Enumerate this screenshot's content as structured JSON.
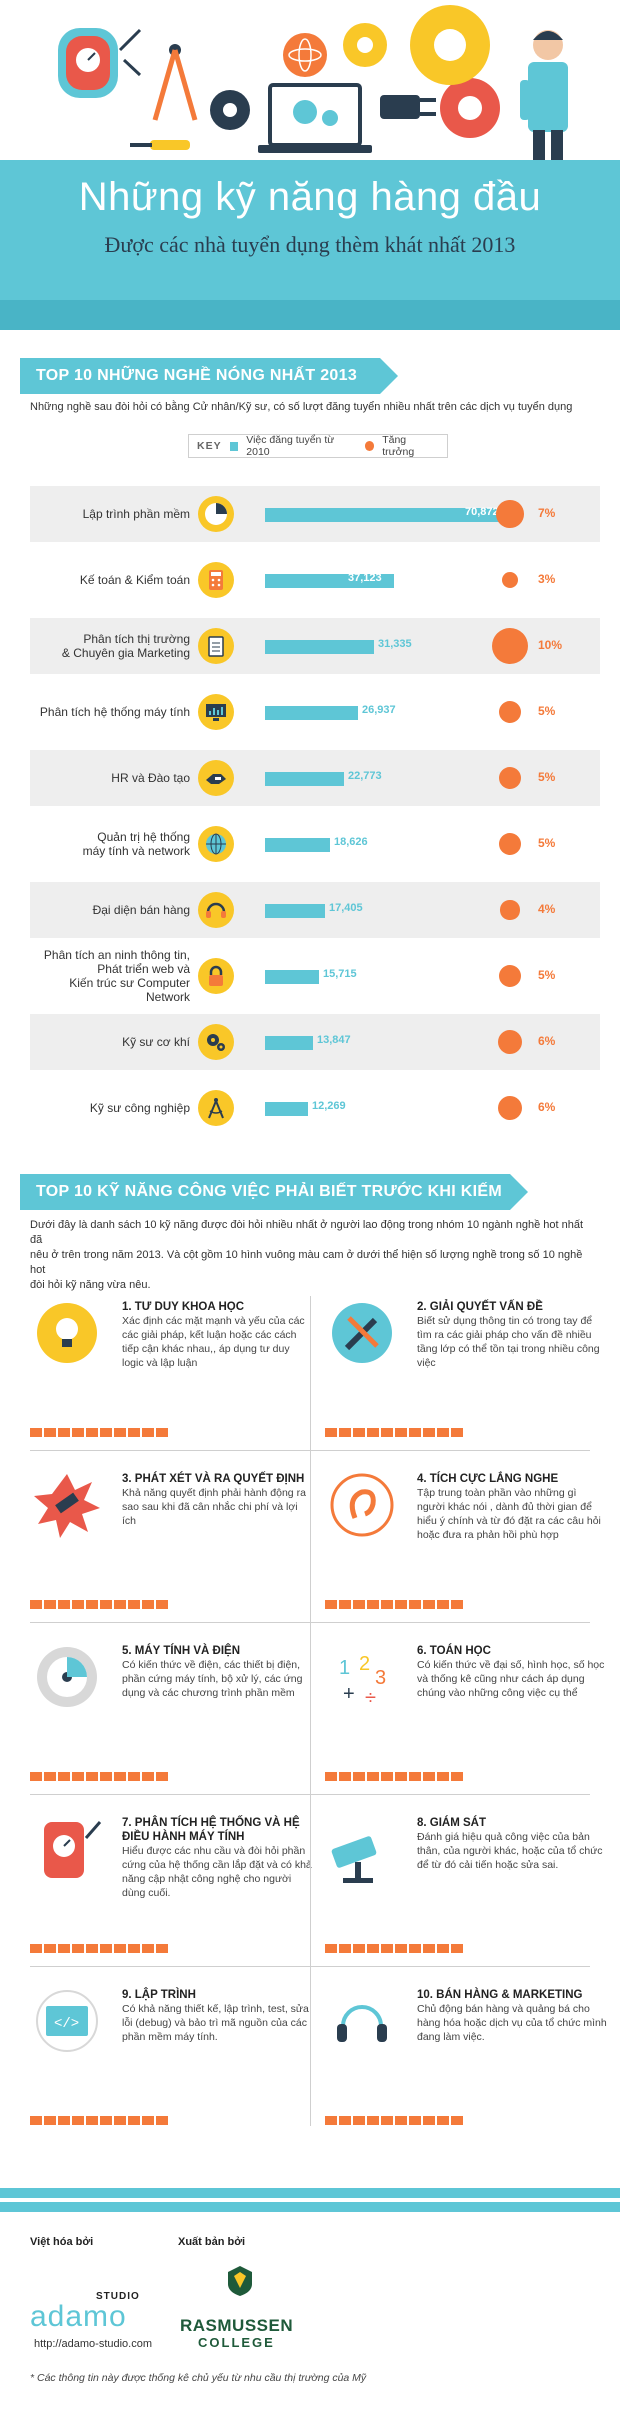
{
  "header": {
    "title": "Những kỹ năng hàng đầu",
    "subtitle": "Được các nhà tuyển dụng thèm khát nhất 2013"
  },
  "colors": {
    "teal": "#5ec6d6",
    "orange": "#f47a3a",
    "yellow": "#f9c728",
    "navy": "#2a3d4f"
  },
  "section1": {
    "title": "TOP 10 NHỮNG NGHỀ NÓNG NHẤT 2013",
    "intro": "Những nghề sau đòi hỏi có bằng Cử nhân/Kỹ sư, có số lượt đăng tuyển nhiều nhất trên các dịch vụ tuyển dụng",
    "legend": {
      "key": "KEY",
      "bar": "Việc đăng tuyển từ 2010",
      "dot": "Tăng trưởng"
    }
  },
  "chart_data": {
    "type": "bar",
    "categories": [
      "Lập trình phần mềm",
      "Kế toán & Kiểm toán",
      "Phân tích thị trường & Chuyên gia Marketing",
      "Phân tích hệ thống máy tính",
      "HR và Đào tạo",
      "Quản trị hệ thống máy tính và network",
      "Đại diện bán hàng",
      "Phân tích an ninh thông tin, Phát triển web và Kiến trúc sư Computer Network",
      "Kỹ sư cơ khí",
      "Kỹ sư công nghiệp"
    ],
    "series": [
      {
        "name": "Việc đăng tuyển từ 2010",
        "values": [
          70872,
          37123,
          31335,
          26937,
          22773,
          18626,
          17405,
          15715,
          13847,
          12269
        ]
      },
      {
        "name": "Tăng trưởng",
        "values": [
          7,
          3,
          10,
          5,
          5,
          5,
          4,
          5,
          6,
          6
        ]
      }
    ],
    "labels": {
      "values": [
        "70,872",
        "37,123",
        "31,335",
        "26,937",
        "22,773",
        "18,626",
        "17,405",
        "15,715",
        "13,847",
        "12,269"
      ],
      "growth": [
        "7%",
        "3%",
        "10%",
        "5%",
        "5%",
        "5%",
        "4%",
        "5%",
        "6%",
        "6%"
      ]
    },
    "label_lines": [
      [
        "Lập trình phần mềm"
      ],
      [
        "Kế toán  & Kiểm toán"
      ],
      [
        "Phân tích thị trường",
        "& Chuyên gia Marketing"
      ],
      [
        "Phân tích hệ thống máy tính"
      ],
      [
        "HR và Đào tạo"
      ],
      [
        "Quản trị hệ thống",
        "máy tính và network"
      ],
      [
        "Đại diện bán hàng"
      ],
      [
        "Phân tích an ninh thông tin,",
        "Phát triển web và",
        "Kiến trúc sư Computer Network"
      ],
      [
        "Kỹ sư cơ khí"
      ],
      [
        "Kỹ sư công nghiệp"
      ]
    ],
    "icons": [
      "pie-chart-icon",
      "calculator-icon",
      "clipboard-icon",
      "monitor-chart-icon",
      "handshake-icon",
      "globe-icon",
      "headset-icon",
      "lock-icon",
      "gears-icon",
      "compass-icon"
    ]
  },
  "section2": {
    "title": "TOP 10 KỸ NĂNG CÔNG VIỆC PHẢI BIẾT TRƯỚC KHI KIẾM VIỆC",
    "intro_lines": [
      "Dưới đây là danh sách 10 kỹ năng được đòi hỏi nhiều nhất ở người lao động trong nhóm 10 ngành nghề hot nhất đã",
      "nêu ở trên trong năm 2013. Và cột gồm 10 hình vuông màu cam ở dưới thể hiện số lượng nghề trong số 10 nghề hot",
      "đòi hỏi kỹ năng vừa nêu."
    ],
    "skills": [
      {
        "title": "1. TƯ DUY KHOA HỌC",
        "desc": "Xác định các mặt mạnh và yếu của các các giải pháp, kết luận hoặc các cách tiếp cận khác nhau,, áp dụng tư duy logic và lập luận",
        "score": 10,
        "icon": "lightbulb-icon"
      },
      {
        "title": "2. GIẢI QUYẾT VẤN ĐỀ",
        "desc": "Biết sử dụng thông tin có trong tay để tìm ra các giải pháp cho vấn đề nhiều tầng lớp có thể tồn tại trong nhiều công việc",
        "score": 10,
        "icon": "tools-icon"
      },
      {
        "title": "3. PHÁT XÉT VÀ RA QUYẾT ĐỊNH",
        "desc": "Khả năng quyết định phải hành động ra sao sau khi đã cân nhắc chi phí và lợi ích",
        "score": 10,
        "icon": "gavel-icon"
      },
      {
        "title": "4. TÍCH CỰC LẮNG NGHE",
        "desc": "Tập trung toàn phần vào những gì người khác nói , dành đủ thời gian để hiểu ý chính và từ đó đặt ra các câu hỏi hoặc đưa ra phản hồi phù hợp",
        "score": 10,
        "icon": "ear-icon"
      },
      {
        "title": "5. MÁY TÍNH VÀ ĐIỆN",
        "desc": "Có kiến thức về điện, các thiết bị điện, phần cứng máy tính, bộ xử lý, các ứng dụng và các chương trình phần mềm",
        "score": 10,
        "icon": "disc-icon"
      },
      {
        "title": "6. TOÁN HỌC",
        "desc": "Có kiến thức về đại số, hình học, số học và thống kê cũng như cách áp dụng chúng vào những công việc cụ thể",
        "score": 10,
        "icon": "math-icon"
      },
      {
        "title": "7. PHÂN TÍCH HỆ THỐNG VÀ HỆ ĐIỀU HÀNH MÁY TÍNH",
        "desc": "Hiểu được các nhu cầu và đòi hỏi phần cứng của hệ thống cần lắp đặt và có khả năng cập nhật công nghệ cho người dùng cuối.",
        "score": 10,
        "icon": "multimeter-icon"
      },
      {
        "title": "8. GIÁM SÁT",
        "desc": "Đánh giá hiệu quả công việc của bản thân, của người khác, hoặc của tổ chức để từ đó cải tiến hoặc sửa sai.",
        "score": 10,
        "icon": "camera-icon"
      },
      {
        "title": "9. LẬP TRÌNH",
        "desc": "Có khả năng thiết kế, lập trình, test, sửa lỗi (debug) và bảo trì mã nguồn của các phần mềm máy tính.",
        "score": 10,
        "icon": "code-window-icon"
      },
      {
        "title": "10. BÁN HÀNG & MARKETING",
        "desc": "Chủ động bán hàng và quảng bá cho hàng hóa hoặc dịch vụ của tổ chức mình đang làm việc.",
        "score": 10,
        "icon": "headphones-icon"
      }
    ]
  },
  "footer": {
    "translated_by_label": "Việt hóa bởi",
    "published_by_label": "Xuất bản bởi",
    "adamo_name": "adamo",
    "adamo_studio": "STUDIO",
    "adamo_url": "http://adamo-studio.com",
    "rasmussen": "RASMUSSEN",
    "college": "COLLEGE",
    "note": "* Các thông tin này được thống kê chủ yếu từ nhu cầu thị trường của Mỹ"
  }
}
